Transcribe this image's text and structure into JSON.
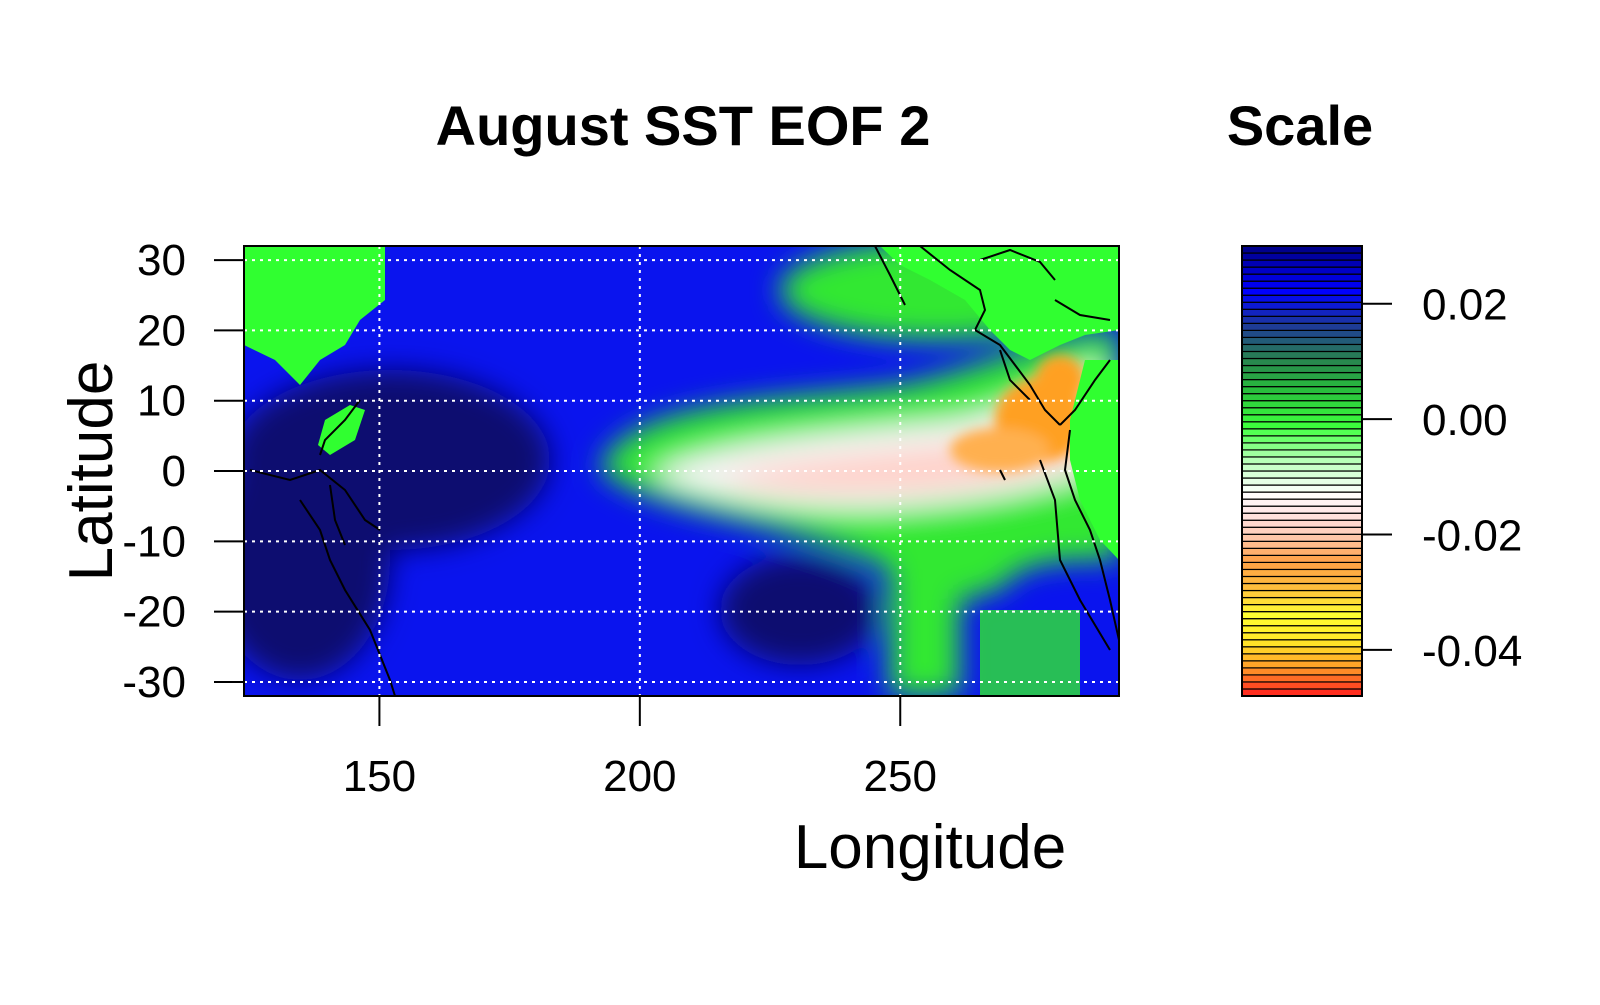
{
  "chart_data": {
    "type": "heatmap",
    "title": "August SST EOF 2",
    "xlabel": "Longitude",
    "ylabel": "Latitude",
    "xlim": [
      124,
      292
    ],
    "ylim": [
      -32,
      32
    ],
    "x_ticks": [
      "150",
      "200",
      "250"
    ],
    "y_ticks": [
      "30",
      "20",
      "10",
      "0",
      "-10",
      "-20",
      "-30"
    ],
    "grid": true,
    "legend": {
      "title": "Scale",
      "position": "right",
      "range": [
        -0.048,
        0.03
      ],
      "ticks": [
        "0.02",
        "0.00",
        "-0.02",
        "-0.04"
      ],
      "tick_values": [
        0.02,
        0.0,
        -0.02,
        -0.04
      ],
      "colors": [
        "#ff2020",
        "#ff9020",
        "#ffd820",
        "#ffff30",
        "#ffc040",
        "#ffa040",
        "#ffd0b0",
        "#ffe4e4",
        "#ffffff",
        "#b8ffb8",
        "#40ff40",
        "#20c040",
        "#208050",
        "#203090",
        "#0000ff",
        "#000080"
      ]
    },
    "features": {
      "tropical_pacific_minimum": {
        "lon_center": 245,
        "lat_center": 0,
        "value": -0.02
      },
      "east_pacific_minimum": {
        "lon_center": 280,
        "lat_center": 5,
        "value": -0.028
      },
      "west_pacific_maximum": {
        "lon_center": 165,
        "lat_center": 5,
        "value": 0.03
      },
      "southeast_pacific_maximum": {
        "lon_center": 232,
        "lat_center": -22,
        "value": 0.03
      }
    }
  }
}
